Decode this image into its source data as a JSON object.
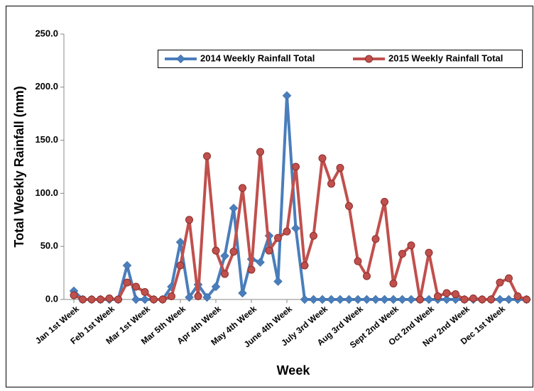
{
  "chart_data": {
    "type": "line",
    "x_label": "Week",
    "y_label": "Total Weekly Rainfall  (mm)",
    "categories": [
      "Jan 1st Week",
      null,
      null,
      null,
      "Feb 1st Week",
      null,
      null,
      null,
      "Mar 1st Week",
      null,
      null,
      null,
      "Mar 5th Week",
      null,
      null,
      null,
      "Apr 4th Week",
      null,
      null,
      null,
      "May 4th Week",
      null,
      null,
      null,
      "June 4th Week",
      null,
      null,
      null,
      "July 3rd Week",
      null,
      null,
      null,
      "Aug 3rd Week",
      null,
      null,
      null,
      "Sept 2nd Week",
      null,
      null,
      null,
      "Oct 2nd Week",
      null,
      null,
      null,
      "Nov 2nd Week",
      null,
      null,
      null,
      "Dec 1st Week",
      null,
      null,
      null
    ],
    "series": [
      {
        "name": "2014 Weekly Rainfall Total",
        "color": "#4a7ebb",
        "marker": "diamond",
        "values": [
          8,
          0,
          0,
          0,
          0,
          0,
          32,
          0,
          0,
          0,
          0,
          12,
          54,
          2,
          14,
          2,
          12,
          41,
          86,
          6,
          38,
          35,
          60,
          17,
          192,
          67,
          0,
          0,
          0,
          0,
          0,
          0,
          0,
          0,
          0,
          0,
          0,
          0,
          0,
          0,
          0,
          0,
          0,
          0,
          0,
          0,
          0,
          0,
          0,
          0,
          0,
          0
        ]
      },
      {
        "name": "2015 Weekly Rainfall Total",
        "color": "#c0504d",
        "marker": "circle",
        "values": [
          4,
          0,
          0,
          0,
          1,
          0,
          16,
          12,
          7,
          0,
          0,
          3,
          32,
          75,
          3,
          135,
          46,
          24,
          45,
          105,
          28,
          139,
          46,
          58,
          64,
          125,
          32,
          60,
          133,
          109,
          124,
          88,
          36,
          22,
          57,
          92,
          15,
          43,
          51,
          0,
          44,
          3,
          6,
          5,
          0,
          1,
          0,
          0,
          16,
          20,
          3,
          0
        ]
      }
    ],
    "ylim": [
      0,
      250
    ],
    "yticks": [
      {
        "value": 0,
        "label": "0.0"
      },
      {
        "value": 50,
        "label": "50.0"
      },
      {
        "value": 100,
        "label": "100.0"
      },
      {
        "value": 150,
        "label": "150.0"
      },
      {
        "value": 200,
        "label": "200.0"
      },
      {
        "value": 250,
        "label": "250.0"
      }
    ],
    "legend": "top"
  }
}
